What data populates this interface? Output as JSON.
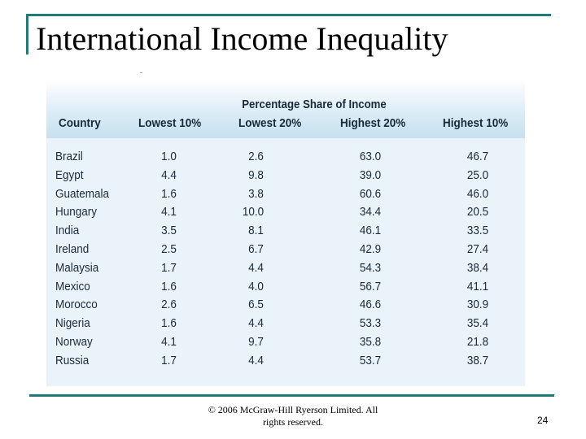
{
  "slide": {
    "title": "International Income Inequality",
    "footer_line1": "© 2006 McGraw-Hill Ryerson Limited. All",
    "footer_line2": "rights reserved.",
    "page_number": "24"
  },
  "table": {
    "group_header": "Percentage Share of Income",
    "columns": [
      "Country",
      "Lowest 10%",
      "Lowest 20%",
      "Highest 20%",
      "Highest 10%"
    ],
    "rows": [
      [
        "Brazil",
        "1.0",
        "2.6",
        "63.0",
        "46.7"
      ],
      [
        "Egypt",
        "4.4",
        "9.8",
        "39.0",
        "25.0"
      ],
      [
        "Guatemala",
        "1.6",
        "3.8",
        "60.6",
        "46.0"
      ],
      [
        "Hungary",
        "4.1",
        "10.0",
        "34.4",
        "20.5"
      ],
      [
        "India",
        "3.5",
        "8.1",
        "46.1",
        "33.5"
      ],
      [
        "Ireland",
        "2.5",
        "6.7",
        "42.9",
        "27.4"
      ],
      [
        "Malaysia",
        "1.7",
        "4.4",
        "54.3",
        "38.4"
      ],
      [
        "Mexico",
        "1.6",
        "4.0",
        "56.7",
        "41.1"
      ],
      [
        "Morocco",
        "2.6",
        "6.5",
        "46.6",
        "30.9"
      ],
      [
        "Nigeria",
        "1.6",
        "4.4",
        "53.3",
        "35.4"
      ],
      [
        "Norway",
        "4.1",
        "9.7",
        "35.8",
        "21.8"
      ],
      [
        "Russia",
        "1.7",
        "4.4",
        "53.7",
        "38.7"
      ]
    ]
  },
  "colors": {
    "accent_rule": "#1f7a7a",
    "table_background": "#eaf3f9",
    "table_text": "#1a2a3a"
  }
}
